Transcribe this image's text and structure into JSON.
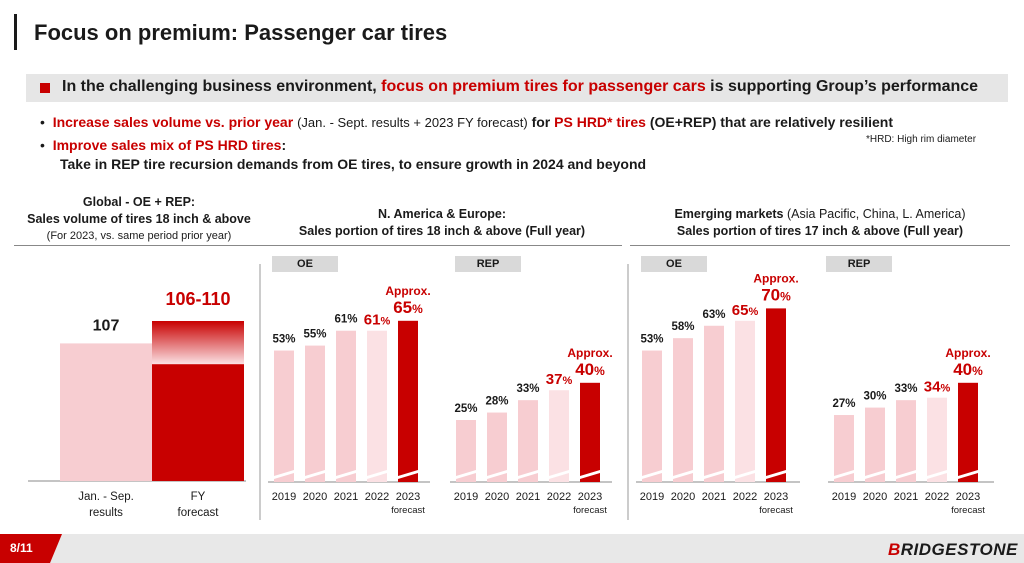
{
  "title": "Focus on premium: Passenger car tires",
  "banner": {
    "prefix": "In the challenging business environment,",
    "highlight": "focus on premium tires for passenger cars",
    "suffix": "is supporting Group’s performance"
  },
  "bullets": [
    {
      "red1": "Increase sales volume vs. prior year",
      "normal": "(Jan. - Sept. results + 2023 FY forecast)",
      "bold": "for",
      "red2": "PS HRD* tires",
      "tail": "(OE+REP) that are relatively resilient"
    },
    {
      "red": "Improve sales mix of PS HRD tires",
      "colon": ":",
      "line2": "Take in REP tire recursion demands from OE tires, to ensure growth in 2024 and beyond"
    }
  ],
  "footnote": "*HRD: High rim diameter",
  "panels": {
    "global": {
      "line1": "Global - OE + REP:",
      "line2": "Sales volume of tires 18 inch & above",
      "line3": "(For 2023, vs. same period prior year)"
    },
    "na_eu": {
      "line1": "N. America & Europe:",
      "line2": "Sales portion of tires 18 inch & above (Full year)"
    },
    "emerging": {
      "line1_bold": "Emerging markets",
      "line1_normal": "(Asia Pacific, China, L. America)",
      "line2": "Sales portion of tires 17 inch & above (Full year)"
    }
  },
  "tags": {
    "oe": "OE",
    "rep": "REP"
  },
  "colors": {
    "accent": "#c80000",
    "light_bar": "#f7cdd1",
    "lighter_bar": "#fbe1e4",
    "banner_bg": "#e6e6e6"
  },
  "chart_data": [
    {
      "type": "bar",
      "title": "Global - OE + REP: Sales volume of tires 18 inch & above",
      "categories": [
        "Jan. - Sep. results",
        "FY forecast"
      ],
      "values": [
        107,
        106
      ],
      "value_labels": [
        "107",
        "106-110"
      ],
      "range_high": 110,
      "baseline": 100,
      "xlabel": "",
      "ylabel": "",
      "cat_line1": [
        "Jan. - Sep.",
        "FY"
      ],
      "cat_line2": [
        "results",
        "forecast"
      ]
    },
    {
      "type": "bar",
      "title": "N. America & Europe: OE",
      "categories": [
        "2019",
        "2020",
        "2021",
        "2022",
        "2023"
      ],
      "values": [
        53,
        55,
        61,
        61,
        65
      ],
      "value_labels": [
        "53%",
        "55%",
        "61%",
        "61%",
        "65%"
      ],
      "approx_label": "Approx.",
      "forecast_label": "forecast",
      "ylim": [
        0,
        70
      ]
    },
    {
      "type": "bar",
      "title": "N. America & Europe: REP",
      "categories": [
        "2019",
        "2020",
        "2021",
        "2022",
        "2023"
      ],
      "values": [
        25,
        28,
        33,
        37,
        40
      ],
      "value_labels": [
        "25%",
        "28%",
        "33%",
        "37%",
        "40%"
      ],
      "approx_label": "Approx.",
      "forecast_label": "forecast",
      "ylim": [
        0,
        70
      ]
    },
    {
      "type": "bar",
      "title": "Emerging markets: OE",
      "categories": [
        "2019",
        "2020",
        "2021",
        "2022",
        "2023"
      ],
      "values": [
        53,
        58,
        63,
        65,
        70
      ],
      "value_labels": [
        "53%",
        "58%",
        "63%",
        "65%",
        "70%"
      ],
      "approx_label": "Approx.",
      "forecast_label": "forecast",
      "ylim": [
        0,
        70
      ]
    },
    {
      "type": "bar",
      "title": "Emerging markets: REP",
      "categories": [
        "2019",
        "2020",
        "2021",
        "2022",
        "2023"
      ],
      "values": [
        27,
        30,
        33,
        34,
        40
      ],
      "value_labels": [
        "27%",
        "30%",
        "33%",
        "34%",
        "40%"
      ],
      "approx_label": "Approx.",
      "forecast_label": "forecast",
      "ylim": [
        0,
        70
      ]
    }
  ],
  "footer": {
    "page": "8/11",
    "logo_b": "B",
    "logo_rest": "RIDGESTONE"
  }
}
